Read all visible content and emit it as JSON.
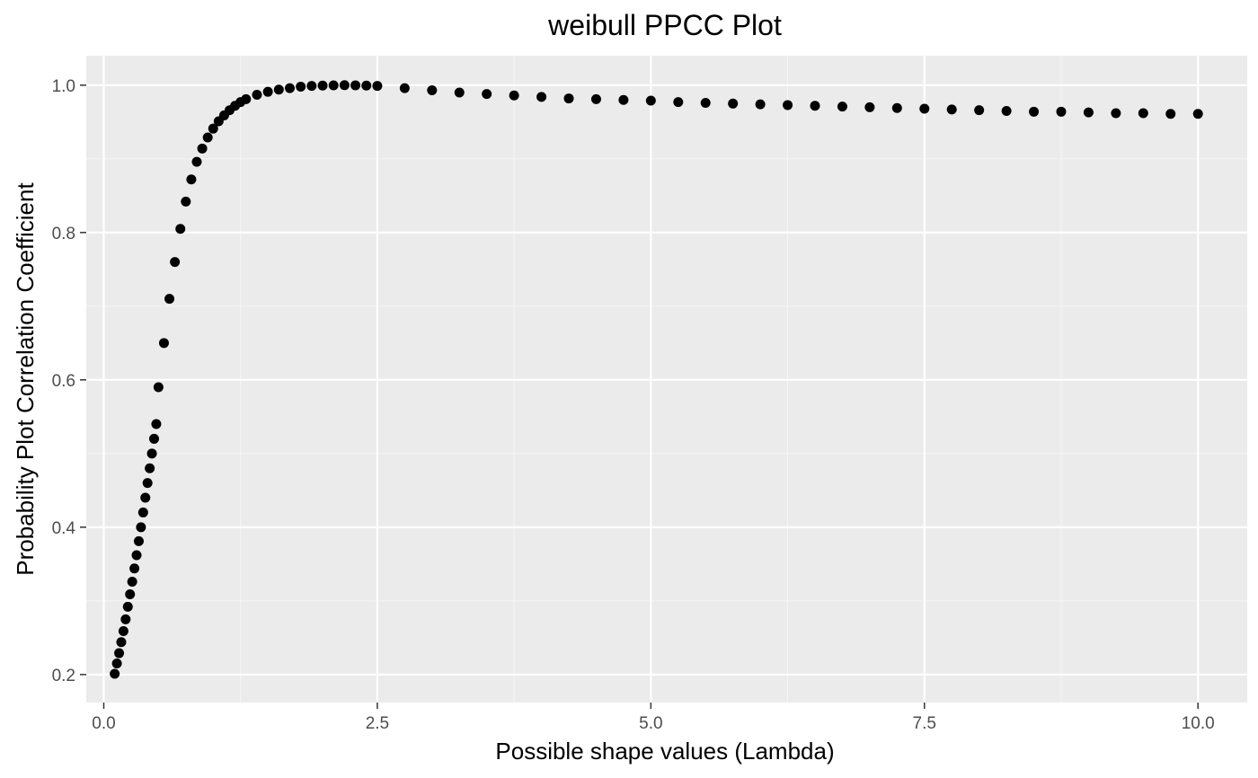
{
  "colors": {
    "panel_background": "#ebebeb",
    "grid_major": "#ffffff",
    "grid_minor": "#f5f5f5",
    "point": "#000000",
    "tick": "#333333",
    "tick_label": "#4d4d4d"
  },
  "chart_data": {
    "type": "scatter",
    "title": "weibull PPCC Plot",
    "xlabel": "Possible shape values (Lambda)",
    "ylabel": "Probability Plot Correlation Coefficient",
    "xlim": [
      -0.16,
      10.45
    ],
    "ylim": [
      0.162,
      1.04
    ],
    "x_ticks": [
      0.0,
      2.5,
      5.0,
      7.5,
      10.0
    ],
    "x_tick_labels": [
      "0.0",
      "2.5",
      "5.0",
      "7.5",
      "10.0"
    ],
    "y_ticks": [
      0.2,
      0.4,
      0.6,
      0.8,
      1.0
    ],
    "y_tick_labels": [
      "0.2",
      "0.4",
      "0.6",
      "0.8",
      "1.0"
    ],
    "grid": true,
    "legend": "none",
    "series": [
      {
        "x": [
          0.1,
          0.12,
          0.14,
          0.16,
          0.18,
          0.2,
          0.22,
          0.24,
          0.26,
          0.28,
          0.3,
          0.32,
          0.34,
          0.36,
          0.38,
          0.4,
          0.42,
          0.44,
          0.46,
          0.48,
          0.5,
          0.55,
          0.6,
          0.65,
          0.7,
          0.75,
          0.8,
          0.85,
          0.9,
          0.95,
          1.0,
          1.05,
          1.1,
          1.15,
          1.2,
          1.25,
          1.3,
          1.4,
          1.5,
          1.6,
          1.7,
          1.8,
          1.9,
          2.0,
          2.1,
          2.2,
          2.3,
          2.4,
          2.5,
          2.75,
          3.0,
          3.25,
          3.5,
          3.75,
          4.0,
          4.25,
          4.5,
          4.75,
          5.0,
          5.25,
          5.5,
          5.75,
          6.0,
          6.25,
          6.5,
          6.75,
          7.0,
          7.25,
          7.5,
          7.75,
          8.0,
          8.25,
          8.5,
          8.75,
          9.0,
          9.25,
          9.5,
          9.75,
          10.0
        ],
        "y": [
          0.201,
          0.215,
          0.229,
          0.244,
          0.259,
          0.275,
          0.292,
          0.309,
          0.326,
          0.344,
          0.362,
          0.381,
          0.4,
          0.42,
          0.44,
          0.46,
          0.48,
          0.5,
          0.52,
          0.54,
          0.59,
          0.65,
          0.71,
          0.76,
          0.805,
          0.842,
          0.872,
          0.896,
          0.914,
          0.929,
          0.941,
          0.951,
          0.959,
          0.966,
          0.972,
          0.977,
          0.981,
          0.987,
          0.991,
          0.994,
          0.996,
          0.998,
          0.999,
          0.9995,
          0.9998,
          1.0,
          0.9998,
          0.9995,
          0.999,
          0.996,
          0.993,
          0.99,
          0.988,
          0.986,
          0.984,
          0.982,
          0.981,
          0.98,
          0.979,
          0.977,
          0.976,
          0.975,
          0.974,
          0.973,
          0.972,
          0.971,
          0.97,
          0.969,
          0.968,
          0.967,
          0.966,
          0.965,
          0.964,
          0.964,
          0.963,
          0.962,
          0.962,
          0.961,
          0.961
        ]
      }
    ]
  }
}
